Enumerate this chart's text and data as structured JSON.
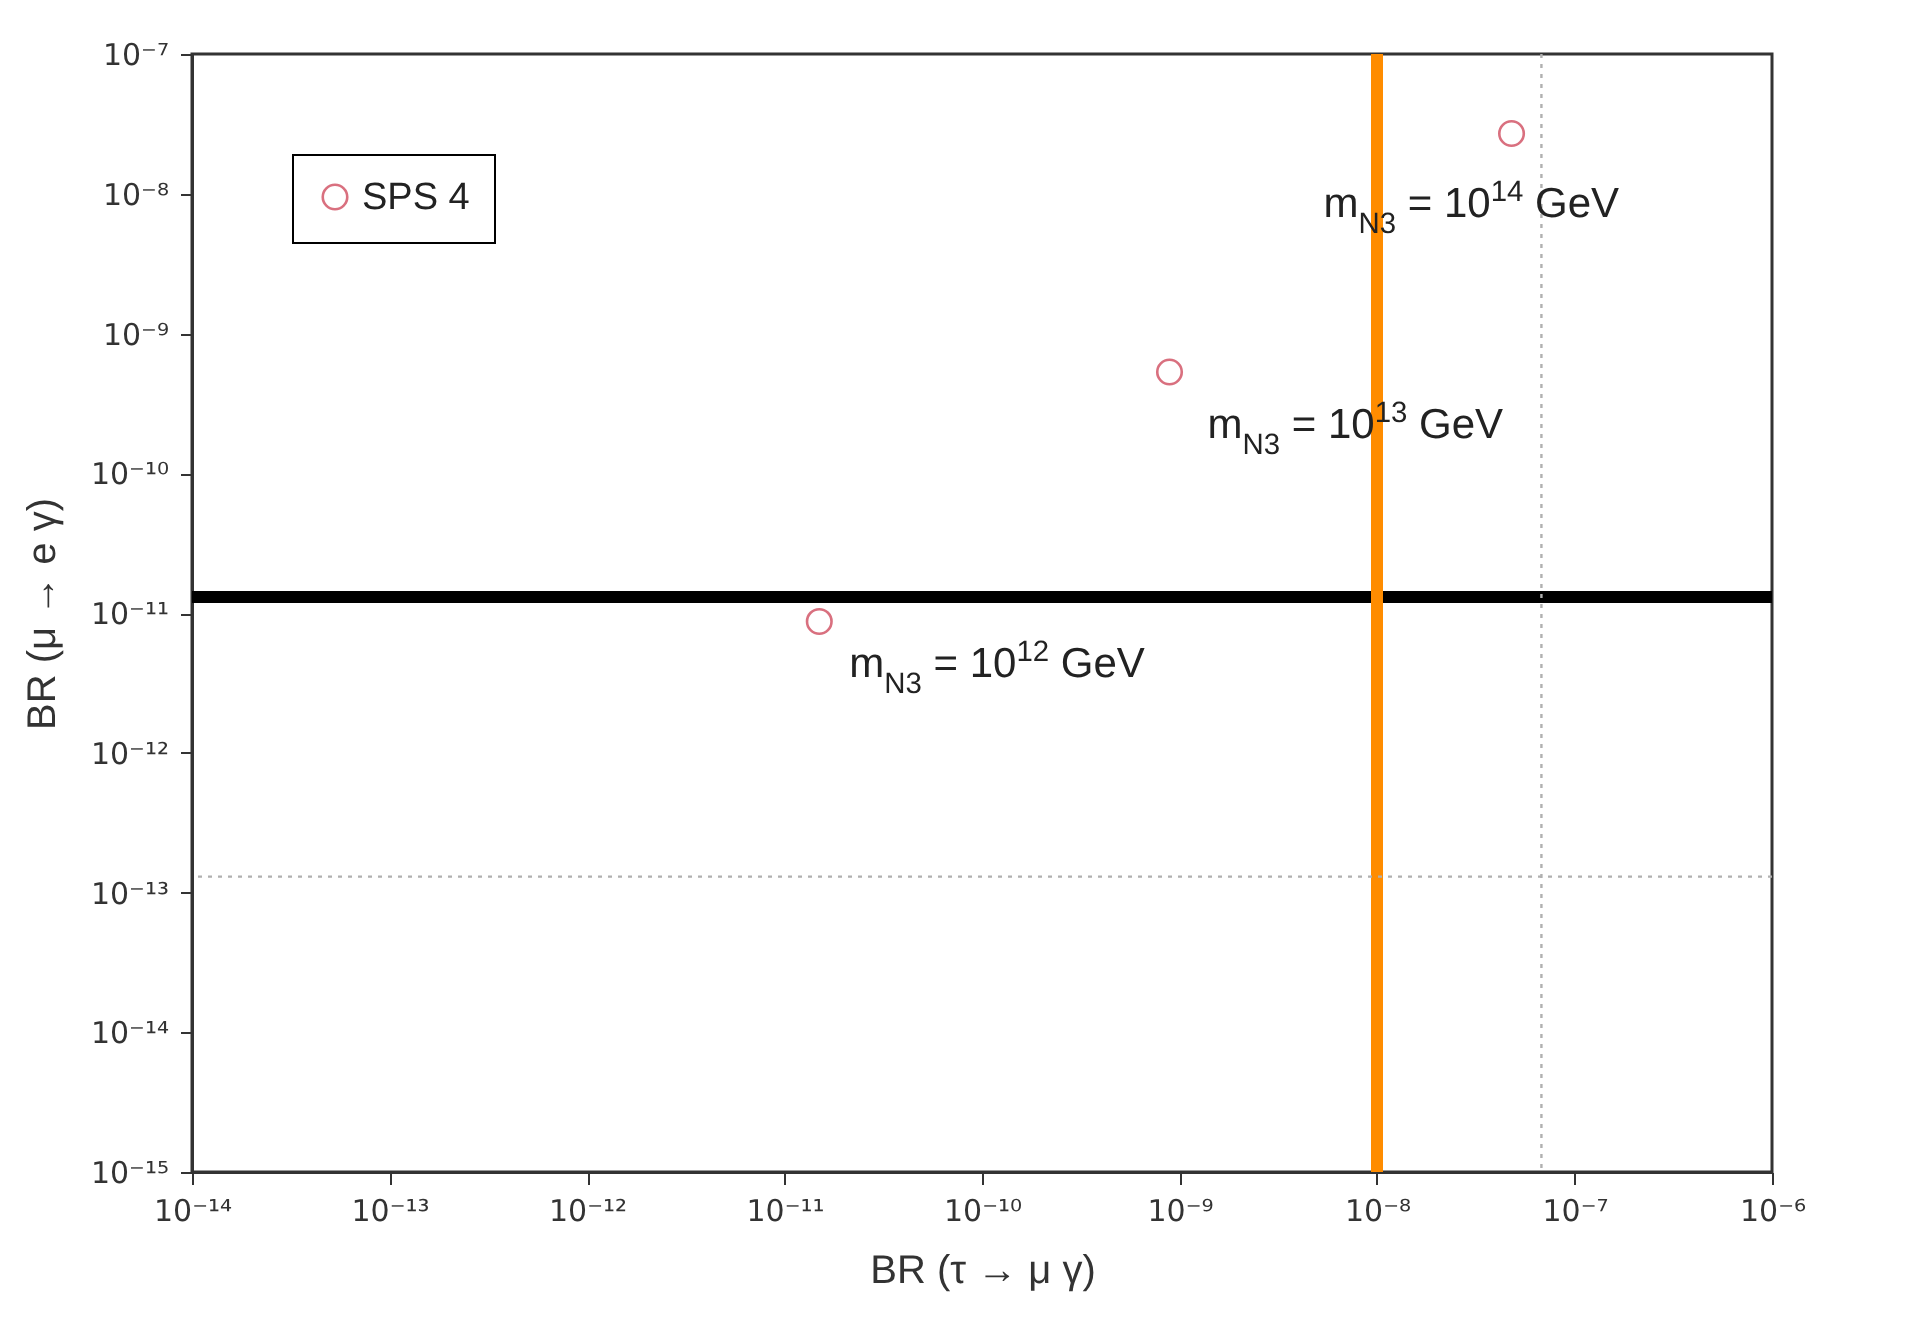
{
  "chart_data": {
    "type": "scatter",
    "xlabel": "BR (τ → μ γ)",
    "ylabel": "BR (μ → e γ)",
    "series": [
      {
        "name": "SPS 4",
        "color": "#d9707f",
        "x": [
          1.5e-11,
          8.9e-10,
          4.8e-08
        ],
        "values": [
          8.7e-12,
          5.3e-10,
          2.7e-08
        ]
      }
    ],
    "log": "xy",
    "marker": "circle",
    "legend": "top left",
    "grid": false,
    "xlim": [
      1e-14,
      1e-06
    ],
    "ylim": [
      1e-15,
      1e-07
    ],
    "xticks": [
      {
        "value": 1e-14,
        "label": "10⁻¹⁴"
      },
      {
        "value": 1e-13,
        "label": "10⁻¹³"
      },
      {
        "value": 1e-12,
        "label": "10⁻¹²"
      },
      {
        "value": 1e-11,
        "label": "10⁻¹¹"
      },
      {
        "value": 1e-10,
        "label": "10⁻¹⁰"
      },
      {
        "value": 1e-09,
        "label": "10⁻⁹"
      },
      {
        "value": 1e-08,
        "label": "10⁻⁸"
      },
      {
        "value": 1e-07,
        "label": "10⁻⁷"
      },
      {
        "value": 1e-06,
        "label": "10⁻⁶"
      }
    ],
    "yticks": [
      {
        "value": 1e-15,
        "label": "10⁻¹⁵"
      },
      {
        "value": 1e-14,
        "label": "10⁻¹⁴"
      },
      {
        "value": 1e-13,
        "label": "10⁻¹³"
      },
      {
        "value": 1e-12,
        "label": "10⁻¹²"
      },
      {
        "value": 1e-11,
        "label": "10⁻¹¹"
      },
      {
        "value": 1e-10,
        "label": "10⁻¹⁰"
      },
      {
        "value": 1e-09,
        "label": "10⁻⁹"
      },
      {
        "value": 1e-08,
        "label": "10⁻⁸"
      },
      {
        "value": 1e-07,
        "label": "10⁻⁷"
      }
    ],
    "ref_lines": [
      {
        "axis": "y",
        "value": 1.3e-11,
        "color": "#000000",
        "line_style": "solid"
      },
      {
        "axis": "x",
        "value": 1e-08,
        "color": "#ff8c00",
        "line_style": "solid"
      },
      {
        "axis": "x",
        "value": 6.8e-08,
        "color": "#b0b0b0",
        "line_style": "dotted"
      },
      {
        "axis": "y",
        "value": 1.3e-13,
        "color": "#b0b0b0",
        "line_style": "dotted"
      }
    ],
    "annotations": [
      {
        "text": "m$_{N3}$ = 10$^{12}$ GeV",
        "x": 1.5e-11,
        "y": 8.7e-12
      },
      {
        "text": "m$_{N3}$ = 10$^{13}$ GeV",
        "x": 8.9e-10,
        "y": 5.3e-10
      },
      {
        "text": "m$_{N3}$ = 10$^{14}$ GeV",
        "x": 4.8e-08,
        "y": 2.7e-08
      }
    ]
  }
}
